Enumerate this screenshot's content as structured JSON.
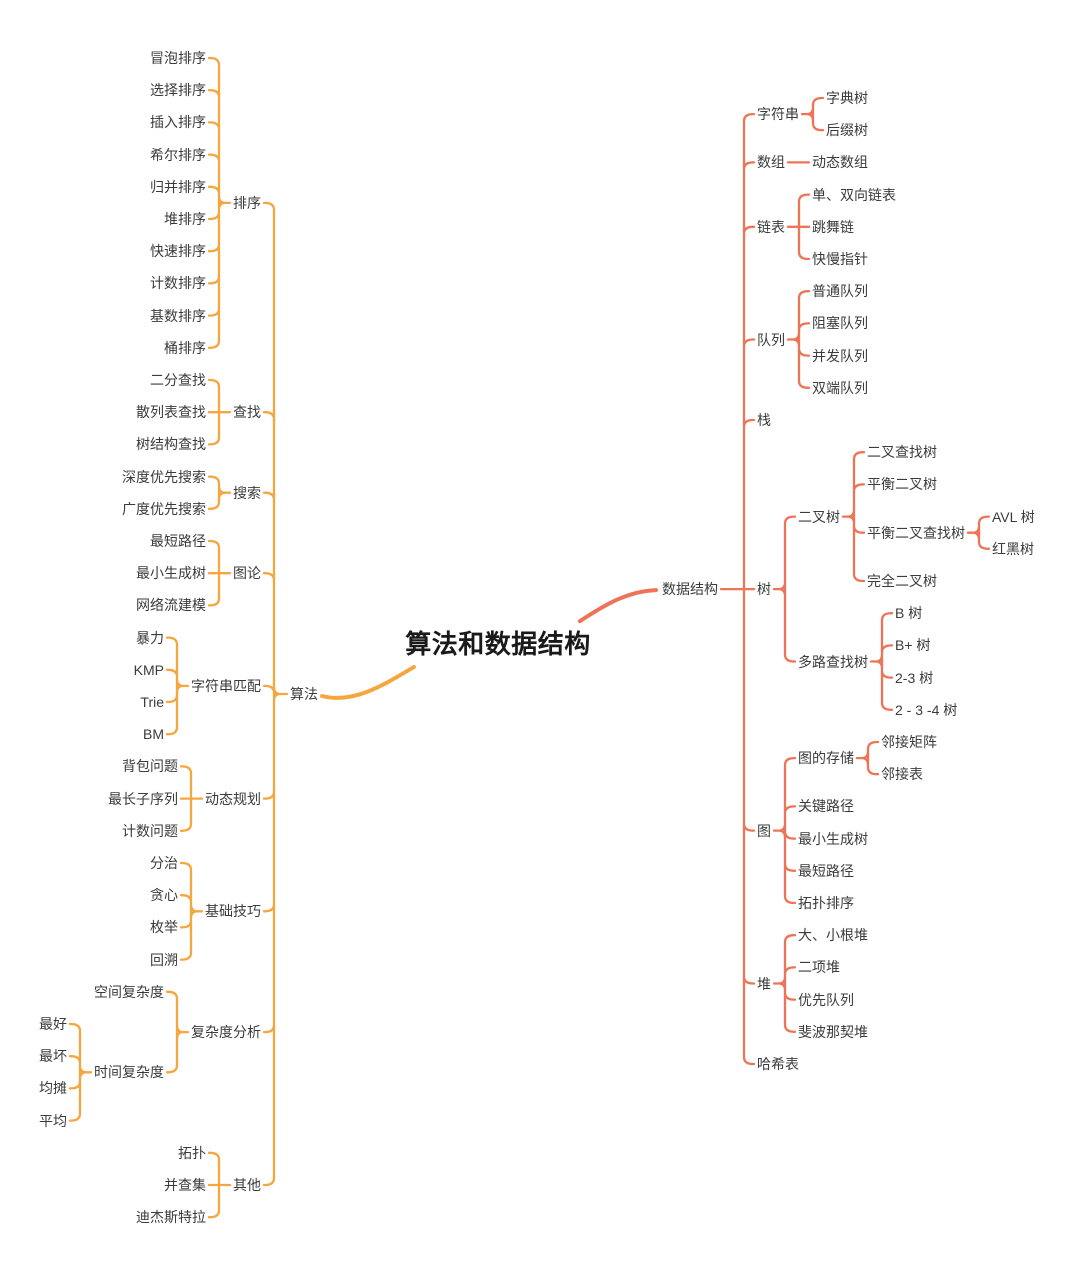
{
  "title": "算法和数据结构",
  "colors": {
    "left_branch": "#F6A63F",
    "right_branch": "#EE7458",
    "text": "#3B3B3B",
    "title_text": "#1A1A1A",
    "background": "#FFFFFF"
  },
  "branches": [
    {
      "label": "算法",
      "side": "left",
      "children": [
        {
          "label": "排序",
          "children": [
            {
              "label": "冒泡排序"
            },
            {
              "label": "选择排序"
            },
            {
              "label": "插入排序"
            },
            {
              "label": "希尔排序"
            },
            {
              "label": "归并排序"
            },
            {
              "label": "堆排序"
            },
            {
              "label": "快速排序"
            },
            {
              "label": "计数排序"
            },
            {
              "label": "基数排序"
            },
            {
              "label": "桶排序"
            }
          ]
        },
        {
          "label": "查找",
          "children": [
            {
              "label": "二分查找"
            },
            {
              "label": "散列表查找"
            },
            {
              "label": "树结构查找"
            }
          ]
        },
        {
          "label": "搜索",
          "children": [
            {
              "label": "深度优先搜索"
            },
            {
              "label": "广度优先搜索"
            }
          ]
        },
        {
          "label": "图论",
          "children": [
            {
              "label": "最短路径"
            },
            {
              "label": "最小生成树"
            },
            {
              "label": "网络流建模"
            }
          ]
        },
        {
          "label": "字符串匹配",
          "children": [
            {
              "label": "暴力"
            },
            {
              "label": "KMP"
            },
            {
              "label": "Trie"
            },
            {
              "label": "BM"
            }
          ]
        },
        {
          "label": "动态规划",
          "children": [
            {
              "label": "背包问题"
            },
            {
              "label": "最长子序列"
            },
            {
              "label": "计数问题"
            }
          ]
        },
        {
          "label": "基础技巧",
          "children": [
            {
              "label": "分治"
            },
            {
              "label": "贪心"
            },
            {
              "label": "枚举"
            },
            {
              "label": "回溯"
            }
          ]
        },
        {
          "label": "复杂度分析",
          "children": [
            {
              "label": "空间复杂度"
            },
            {
              "label": "时间复杂度",
              "children": [
                {
                  "label": "最好"
                },
                {
                  "label": "最坏"
                },
                {
                  "label": "均摊"
                },
                {
                  "label": "平均"
                }
              ]
            }
          ]
        },
        {
          "label": "其他",
          "children": [
            {
              "label": "拓扑"
            },
            {
              "label": "并查集"
            },
            {
              "label": "迪杰斯特拉"
            }
          ]
        }
      ]
    },
    {
      "label": "数据结构",
      "side": "right",
      "children": [
        {
          "label": "字符串",
          "children": [
            {
              "label": "字典树"
            },
            {
              "label": "后缀树"
            }
          ]
        },
        {
          "label": "数组",
          "children": [
            {
              "label": "动态数组"
            }
          ]
        },
        {
          "label": "链表",
          "children": [
            {
              "label": "单、双向链表"
            },
            {
              "label": "跳舞链"
            },
            {
              "label": "快慢指针"
            }
          ]
        },
        {
          "label": "队列",
          "children": [
            {
              "label": "普通队列"
            },
            {
              "label": "阻塞队列"
            },
            {
              "label": "并发队列"
            },
            {
              "label": "双端队列"
            }
          ]
        },
        {
          "label": "栈"
        },
        {
          "label": "树",
          "children": [
            {
              "label": "二叉树",
              "children": [
                {
                  "label": "二叉查找树"
                },
                {
                  "label": "平衡二叉树"
                },
                {
                  "label": "平衡二叉查找树",
                  "children": [
                    {
                      "label": "AVL 树"
                    },
                    {
                      "label": "红黑树"
                    }
                  ]
                },
                {
                  "label": "完全二叉树"
                }
              ]
            },
            {
              "label": "多路查找树",
              "children": [
                {
                  "label": "B 树"
                },
                {
                  "label": "B+ 树"
                },
                {
                  "label": "2-3 树"
                },
                {
                  "label": "2 - 3 -4 树"
                }
              ]
            }
          ]
        },
        {
          "label": "图",
          "children": [
            {
              "label": "图的存储",
              "children": [
                {
                  "label": "邻接矩阵"
                },
                {
                  "label": "邻接表"
                }
              ]
            },
            {
              "label": "关键路径"
            },
            {
              "label": "最小生成树"
            },
            {
              "label": "最短路径"
            },
            {
              "label": "拓扑排序"
            }
          ]
        },
        {
          "label": "堆",
          "children": [
            {
              "label": "大、小根堆"
            },
            {
              "label": "二项堆"
            },
            {
              "label": "优先队列"
            },
            {
              "label": "斐波那契堆"
            }
          ]
        },
        {
          "label": "哈希表"
        }
      ]
    }
  ]
}
